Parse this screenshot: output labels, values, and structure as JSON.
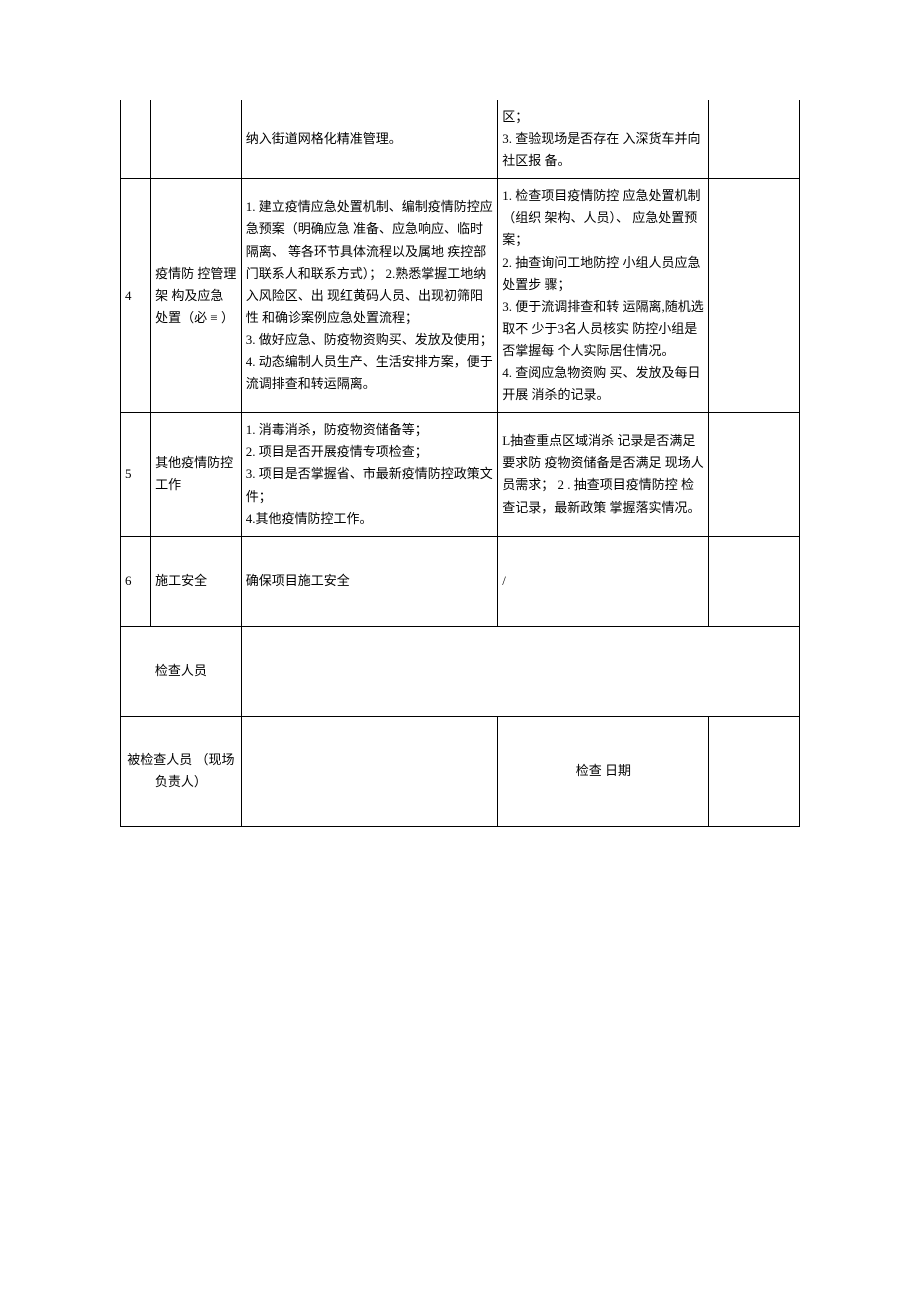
{
  "table": {
    "rows": [
      {
        "num": "",
        "category": "",
        "content": "纳入街道网格化精准管理。",
        "method": "区；\n3. 查验现场是否存在 入深货车并向社区报 备。",
        "remark": ""
      },
      {
        "num": "4",
        "category": "疫情防 控管理架 构及应急 处置（必 ≡ ）",
        "content": "1. 建立疫情应急处置机制、编制疫情防控应急预案（明确应急 准备、应急响应、临时隔离、 等各环节具体流程以及属地 疾控部门联系人和联系方式）； 2.熟悉掌握工地纳入风险区、出 现红黄码人员、出现初筛阳性 和确诊案例应急处置流程；\n3. 做好应急、防疫物资购买、发放及使用；\n4. 动态编制人员生产、生活安排方案，便于流调排查和转运隔离。",
        "method": "1. 检查项目疫情防控 应急处置机制（组织 架构、人员）、 应急处置预案；\n2. 抽查询问工地防控 小组人员应急处置步 骤；\n3. 便于流调排查和转 运隔离,随机选取不 少于3名人员核实 防控小组是否掌握每 个人实际居住情况。\n4. 查阅应急物资购 买、发放及每日开展 消杀的记录。",
        "remark": ""
      },
      {
        "num": "5",
        "category": "其他疫情防控工作",
        "content": "1. 消毒消杀，防疫物资储备等；\n2. 项目是否开展疫情专项检查；\n3. 项目是否掌握省、市最新疫情防控政策文件；\n4.其他疫情防控工作。",
        "method": "L抽查重点区域消杀    记录是否满足要求防 疫物资储备是否满足 现场人员需求； 2 . 抽查项目疫情防控 检查记录，最新政策 掌握落实情况。",
        "remark": ""
      },
      {
        "num": "6",
        "category": "施工安全",
        "content": "确保项目施工安全",
        "method": "/",
        "remark": ""
      }
    ],
    "signature": {
      "inspector_label": "检查人员",
      "inspector_value": "",
      "inspected_label": "被检查人员 （现场负责人）",
      "inspected_value": "",
      "date_label": "检查 日期",
      "date_value": ""
    }
  },
  "styling": {
    "border_color": "#000000",
    "background_color": "#ffffff",
    "text_color": "#000000",
    "font_size": 13,
    "line_height": 1.7,
    "font_family": "SimSun"
  }
}
